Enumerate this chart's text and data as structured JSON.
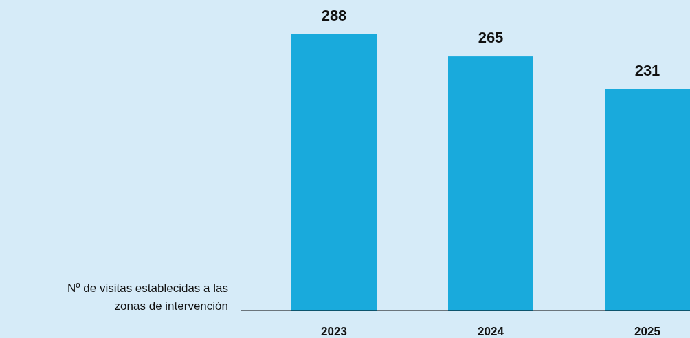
{
  "chart_data": {
    "type": "bar",
    "ylabel": "Nº de visitas establecidas a las zonas de intervención",
    "categories": [
      "2023",
      "2024",
      "2025"
    ],
    "values": [
      288,
      265,
      231
    ],
    "color": "#19aadc",
    "data_labels": true
  }
}
